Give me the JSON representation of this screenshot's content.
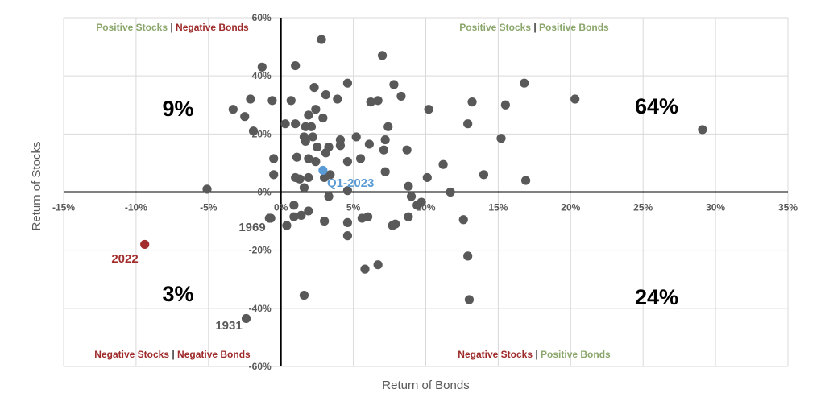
{
  "colors": {
    "point": "#595959",
    "highlight_2022": "#a32d2d",
    "highlight_q1": "#5a9bd5",
    "positive": "#8aa66b",
    "negative": "#9e2a2a",
    "grid": "#d9d9d9",
    "axis": "#000000"
  },
  "chart_data": {
    "type": "scatter",
    "title": "",
    "xlabel": "Return of Bonds",
    "ylabel": "Return of Stocks",
    "xlim": [
      -15,
      35
    ],
    "ylim": [
      -60,
      60
    ],
    "x_ticks": [
      -15,
      -10,
      -5,
      0,
      5,
      10,
      15,
      20,
      25,
      30,
      35
    ],
    "y_ticks": [
      -60,
      -40,
      -20,
      0,
      20,
      40,
      60
    ],
    "x_tick_labels": [
      "-15%",
      "-10%",
      "-5%",
      "0%",
      "5%",
      "10%",
      "15%",
      "20%",
      "25%",
      "30%",
      "35%"
    ],
    "y_tick_labels": [
      "-60%",
      "-40%",
      "-20%",
      "0%",
      "20%",
      "40%",
      "60%"
    ],
    "grid": true,
    "quadrant_labels": {
      "top_left": {
        "first": "Positive Stocks",
        "sep": " | ",
        "second": "Negative Bonds"
      },
      "top_right": {
        "first": "Positive Stocks",
        "sep": " | ",
        "second": "Positive Bonds"
      },
      "bottom_left": {
        "first": "Negative Stocks",
        "sep": " | ",
        "second": "Negative Bonds"
      },
      "bottom_right": {
        "first": "Negative Stocks",
        "sep": " | ",
        "second": "Positive Bonds"
      }
    },
    "quadrant_percentages": {
      "top_left": "9%",
      "top_right": "64%",
      "bottom_left": "3%",
      "bottom_right": "24%"
    },
    "points": [
      [
        -5.1,
        1.0
      ],
      [
        -3.3,
        28.5
      ],
      [
        -2.5,
        26.0
      ],
      [
        -2.1,
        32.0
      ],
      [
        -1.9,
        21.0
      ],
      [
        -1.3,
        43.0
      ],
      [
        -0.6,
        31.5
      ],
      [
        -0.5,
        11.5
      ],
      [
        -0.5,
        6.0
      ],
      [
        0.3,
        23.5
      ],
      [
        0.7,
        31.5
      ],
      [
        1.0,
        43.5
      ],
      [
        1.0,
        23.5
      ],
      [
        1.1,
        12.0
      ],
      [
        1.0,
        5.0
      ],
      [
        1.3,
        4.5
      ],
      [
        1.7,
        22.5
      ],
      [
        1.6,
        19.0
      ],
      [
        1.7,
        17.5
      ],
      [
        1.9,
        26.5
      ],
      [
        1.9,
        11.5
      ],
      [
        1.9,
        5.0
      ],
      [
        2.1,
        22.5
      ],
      [
        2.2,
        19.0
      ],
      [
        2.3,
        36.0
      ],
      [
        2.4,
        10.5
      ],
      [
        2.4,
        28.5
      ],
      [
        2.5,
        15.5
      ],
      [
        2.8,
        52.5
      ],
      [
        2.9,
        25.5
      ],
      [
        3.1,
        33.5
      ],
      [
        3.1,
        13.5
      ],
      [
        3.3,
        15.5
      ],
      [
        3.4,
        6.0
      ],
      [
        3.0,
        5.0
      ],
      [
        3.9,
        32.0
      ],
      [
        4.1,
        18.0
      ],
      [
        4.1,
        16.0
      ],
      [
        4.6,
        37.5
      ],
      [
        4.6,
        10.5
      ],
      [
        4.6,
        0.5
      ],
      [
        5.2,
        19.0
      ],
      [
        5.5,
        11.5
      ],
      [
        6.1,
        16.5
      ],
      [
        6.2,
        31.0
      ],
      [
        6.7,
        31.5
      ],
      [
        7.0,
        47.0
      ],
      [
        7.2,
        18.0
      ],
      [
        7.1,
        14.5
      ],
      [
        7.2,
        7.0
      ],
      [
        7.4,
        22.5
      ],
      [
        7.8,
        37.0
      ],
      [
        8.3,
        33.0
      ],
      [
        8.7,
        14.5
      ],
      [
        8.8,
        2.0
      ],
      [
        9.0,
        -1.5
      ],
      [
        10.2,
        28.5
      ],
      [
        10.1,
        5.0
      ],
      [
        11.2,
        9.5
      ],
      [
        11.7,
        0.0
      ],
      [
        12.9,
        23.5
      ],
      [
        13.2,
        31.0
      ],
      [
        14.0,
        6.0
      ],
      [
        15.2,
        18.5
      ],
      [
        15.5,
        30.0
      ],
      [
        16.8,
        37.5
      ],
      [
        16.9,
        4.0
      ],
      [
        20.3,
        32.0
      ],
      [
        29.1,
        21.5
      ],
      [
        1.6,
        1.5
      ],
      [
        0.9,
        -4.5
      ],
      [
        -0.8,
        -9.0
      ],
      [
        0.4,
        -11.5
      ],
      [
        0.9,
        -8.5
      ],
      [
        1.4,
        -8.0
      ],
      [
        1.9,
        -6.5
      ],
      [
        3.0,
        -10.0
      ],
      [
        3.3,
        -1.5
      ],
      [
        4.6,
        -15.0
      ],
      [
        4.6,
        -10.5
      ],
      [
        5.6,
        -9.0
      ],
      [
        6.0,
        -8.5
      ],
      [
        7.7,
        -11.5
      ],
      [
        7.9,
        -11.0
      ],
      [
        8.8,
        -8.5
      ],
      [
        9.4,
        -4.5
      ],
      [
        9.7,
        -3.5
      ],
      [
        12.6,
        -9.5
      ],
      [
        12.9,
        -22.0
      ],
      [
        13.0,
        -37.0
      ],
      [
        5.8,
        -26.5
      ],
      [
        6.7,
        -25.0
      ],
      [
        1.6,
        -35.5
      ]
    ],
    "labeled_points": [
      {
        "label": "Q1-2023",
        "x": 2.9,
        "y": 7.5,
        "color_key": "highlight_q1"
      },
      {
        "label": "2022",
        "x": -9.4,
        "y": -18.0,
        "color_key": "highlight_2022"
      },
      {
        "label": "1969",
        "x": -0.7,
        "y": -9.0,
        "color_key": "point"
      },
      {
        "label": "1931",
        "x": -2.4,
        "y": -43.5,
        "color_key": "point"
      }
    ]
  }
}
